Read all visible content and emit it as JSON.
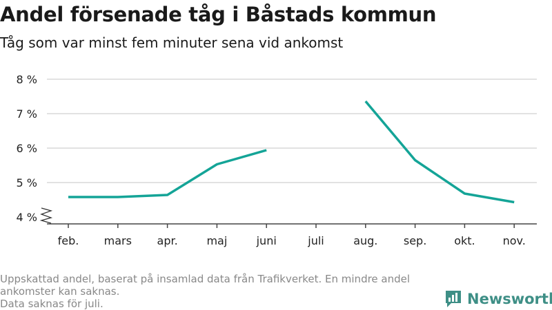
{
  "header": {
    "title": "Andel försenade tåg i Båstads kommun",
    "subtitle": "Tåg som var minst fem minuter sena vid ankomst"
  },
  "chart_data": {
    "type": "line",
    "title": "Andel försenade tåg i Båstads kommun",
    "subtitle": "Tåg som var minst fem minuter sena vid ankomst",
    "categories": [
      "feb.",
      "mars",
      "apr.",
      "maj",
      "juni",
      "juli",
      "aug.",
      "sep.",
      "okt.",
      "nov."
    ],
    "series": [
      {
        "values": [
          4.58,
          4.58,
          4.64,
          5.53,
          5.94,
          null,
          7.36,
          5.65,
          4.68,
          4.43
        ]
      }
    ],
    "yticks": [
      4,
      5,
      6,
      7,
      8
    ],
    "ytick_labels": [
      "4 %",
      "5 %",
      "6 %",
      "7 %",
      "8 %"
    ],
    "ylim": [
      4,
      8
    ],
    "y_axis_break": true,
    "grid": true,
    "line_color": "#14a497"
  },
  "footnote": {
    "lines": [
      "Uppskattad andel, baserat på insamlad data från Trafikverket. En mindre andel ankomster kan saknas.",
      "Data saknas för juli."
    ]
  },
  "brand": {
    "name": "Newsworthy",
    "color": "#3e8f86",
    "icon": "bar-chart-logo-icon"
  }
}
